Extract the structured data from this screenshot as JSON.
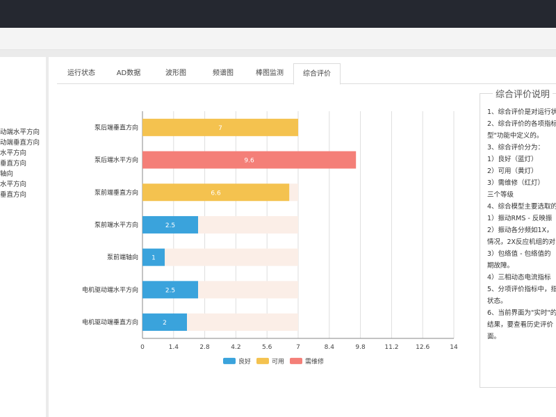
{
  "left_panel": {
    "items": [
      "动端水平方向",
      "动端垂直方向",
      "水平方向",
      "垂直方向",
      "轴向",
      "水平方向",
      "垂直方向"
    ]
  },
  "tabs": [
    {
      "label": "运行状态",
      "active": false
    },
    {
      "label": "AD数据",
      "active": false
    },
    {
      "label": "波形图",
      "active": false
    },
    {
      "label": "频谱图",
      "active": false
    },
    {
      "label": "棒图监测",
      "active": false
    },
    {
      "label": "综合评价",
      "active": true
    }
  ],
  "colors": {
    "good": "#3aa3dc",
    "usable": "#f4c24f",
    "repair": "#f47f78",
    "track": "#fbeee7"
  },
  "chart_data": {
    "type": "bar",
    "orientation": "horizontal",
    "categories": [
      "泵后端垂直方向",
      "泵后端水平方向",
      "泵前端垂直方向",
      "泵前端水平方向",
      "泵前端轴向",
      "电机驱动端水平方向",
      "电机驱动端垂直方向"
    ],
    "values": [
      7,
      9.6,
      6.6,
      2.5,
      1,
      2.5,
      2
    ],
    "value_labels": [
      "7",
      "9.6",
      "6.6",
      "2.5",
      "1",
      "2.5",
      "2"
    ],
    "status": [
      "usable",
      "repair",
      "usable",
      "good",
      "good",
      "good",
      "good"
    ],
    "xticks": [
      "0",
      "1.4",
      "2.8",
      "4.2",
      "5.6",
      "7",
      "8.4",
      "9.8",
      "11.2",
      "12.6",
      "14"
    ],
    "xlim": [
      0,
      14
    ],
    "grid": true,
    "legend_position": "bottom",
    "legend": [
      {
        "key": "good",
        "label": "良好"
      },
      {
        "key": "usable",
        "label": "可用"
      },
      {
        "key": "repair",
        "label": "需维修"
      }
    ]
  },
  "explanation": {
    "title": "综合评价说明",
    "lines": [
      "1、综合评价是对运行状",
      "2、综合评价的各项指标",
      "型\"功能中定义的。",
      "3、综合评价分为：",
      "  1）良好（蓝灯）",
      "  2）可用（黄灯）",
      "  3）需维修（红灯）",
      "  三个等级",
      "4、综合模型主要选取的",
      "  1）振动RMS - 反映振",
      "  2）振动各分频如1X，",
      "情况，2X反应机组的对",
      "  3）包络值 - 包络值的",
      "期故障。",
      "  4）三相动态电流指标",
      "5、分项评价指标中，指",
      "状态。",
      "6、当前界面为\"实时\"的",
      "结果，要查看历史评价",
      "面。"
    ]
  }
}
